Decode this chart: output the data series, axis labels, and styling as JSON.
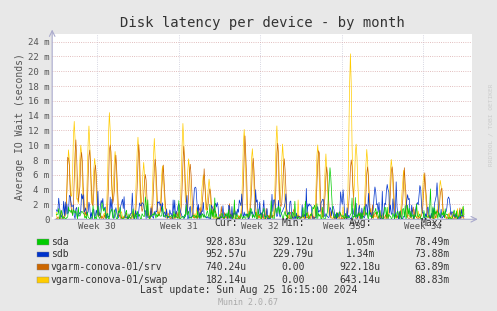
{
  "title": "Disk latency per device - by month",
  "ylabel": "Average IO Wait (seconds)",
  "background_color": "#e8e8e8",
  "plot_bg_color": "#ffffff",
  "grid_color_h": "#d8a8a8",
  "grid_color_v": "#c8c8d8",
  "ytick_labels": [
    "0",
    "2 m",
    "4 m",
    "6 m",
    "8 m",
    "10 m",
    "12 m",
    "14 m",
    "16 m",
    "18 m",
    "20 m",
    "22 m",
    "24 m"
  ],
  "ytick_values": [
    0,
    0.002,
    0.004,
    0.006,
    0.008,
    0.01,
    0.012,
    0.014,
    0.016,
    0.018,
    0.02,
    0.022,
    0.024
  ],
  "ylim": [
    0,
    0.025
  ],
  "xtick_labels": [
    "Week 30",
    "Week 31",
    "Week 32",
    "Week 33",
    "Week 34"
  ],
  "series": [
    {
      "name": "sda",
      "color": "#00cc00"
    },
    {
      "name": "sdb",
      "color": "#0033cc"
    },
    {
      "name": "vgarm-conova-01/srv",
      "color": "#cc6600"
    },
    {
      "name": "vgarm-conova-01/swap",
      "color": "#ffcc00"
    }
  ],
  "table_headers": [
    "Cur:",
    "Min:",
    "Avg:",
    "Max:"
  ],
  "table_data": [
    [
      "928.83u",
      "329.12u",
      "1.05m",
      "78.49m"
    ],
    [
      "952.57u",
      "229.79u",
      "1.34m",
      "73.88m"
    ],
    [
      "740.24u",
      "0.00",
      "922.18u",
      "63.89m"
    ],
    [
      "182.14u",
      "0.00",
      "643.14u",
      "88.83m"
    ]
  ],
  "last_update": "Last update: Sun Aug 25 16:15:00 2024",
  "munin_version": "Munin 2.0.67",
  "rrdtool_label": "RRDTOOL / TOBI OETIKER",
  "title_fontsize": 10,
  "axis_fontsize": 7,
  "tick_fontsize": 6.5,
  "legend_fontsize": 7,
  "table_fontsize": 7
}
